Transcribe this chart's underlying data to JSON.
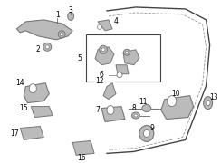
{
  "bg_color": "#ffffff",
  "fig_width": 2.44,
  "fig_height": 1.8,
  "dpi": 100,
  "line_color": "#aaaaaa",
  "dark_color": "#555555",
  "part_color": "#bbbbbb",
  "part_dark": "#777777"
}
